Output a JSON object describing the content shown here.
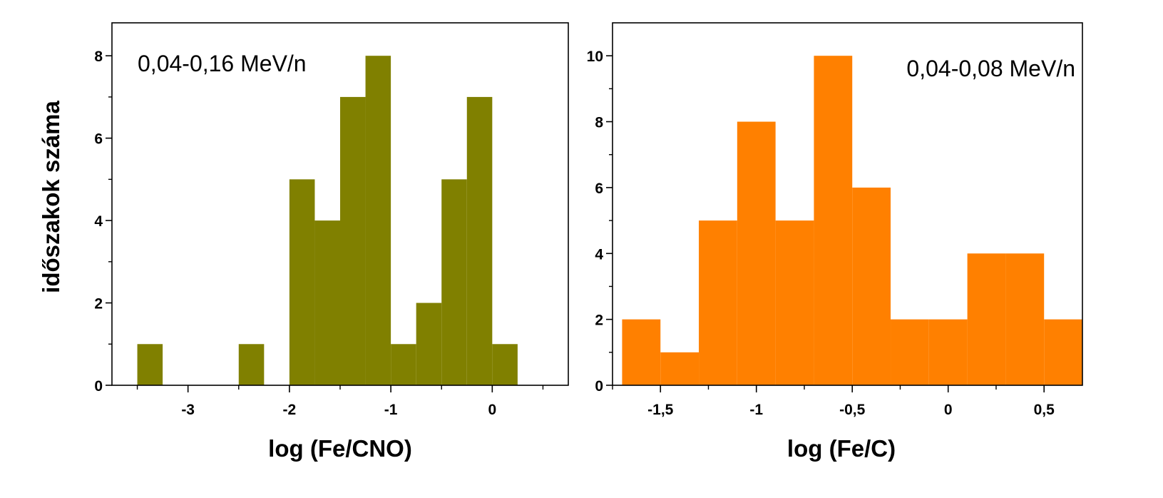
{
  "ylabel": "időszakok száma",
  "chart_data": [
    {
      "type": "bar",
      "title": "",
      "annotation": "0,04-0,16 MeV/n",
      "xlabel": "log (Fe/CNO)",
      "ylabel": "időszakok száma",
      "color": "#808000",
      "xlim": [
        -3.75,
        0.75
      ],
      "ylim": [
        0,
        8.8
      ],
      "xticks": [
        -3,
        -2,
        -1,
        0
      ],
      "xtick_labels": [
        "-3",
        "-2",
        "-1",
        "0"
      ],
      "yticks": [
        0,
        2,
        4,
        6,
        8
      ],
      "ytick_labels": [
        "0",
        "2",
        "4",
        "6",
        "8"
      ],
      "bin_width": 0.25,
      "bin_start": [
        -3.5,
        -3.25,
        -3.0,
        -2.75,
        -2.5,
        -2.25,
        -2.0,
        -1.75,
        -1.5,
        -1.25,
        -1.0,
        -0.75,
        -0.5,
        -0.25,
        0.0
      ],
      "values": [
        1,
        0,
        0,
        0,
        1,
        0,
        5,
        4,
        7,
        8,
        1,
        2,
        5,
        7,
        1
      ],
      "grid": false
    },
    {
      "type": "bar",
      "title": "",
      "annotation": "0,04-0,08 MeV/n",
      "xlabel": "log (Fe/C)",
      "ylabel": "",
      "color": "#ff8000",
      "xlim": [
        -1.75,
        0.7
      ],
      "ylim": [
        0,
        11
      ],
      "xticks": [
        -1.5,
        -1.0,
        -0.5,
        0.0,
        0.5
      ],
      "xtick_labels": [
        "-1,5",
        "-1",
        "-0,5",
        "0",
        "0,5"
      ],
      "yticks": [
        0,
        2,
        4,
        6,
        8,
        10
      ],
      "ytick_labels": [
        "0",
        "2",
        "4",
        "6",
        "8",
        "10"
      ],
      "bin_width": 0.2,
      "bin_start": [
        -1.7,
        -1.5,
        -1.3,
        -1.1,
        -0.9,
        -0.7,
        -0.5,
        -0.3,
        -0.1,
        0.1,
        0.3,
        0.5
      ],
      "values": [
        2,
        1,
        5,
        8,
        5,
        10,
        6,
        2,
        2,
        4,
        4,
        2
      ],
      "grid": false
    }
  ]
}
